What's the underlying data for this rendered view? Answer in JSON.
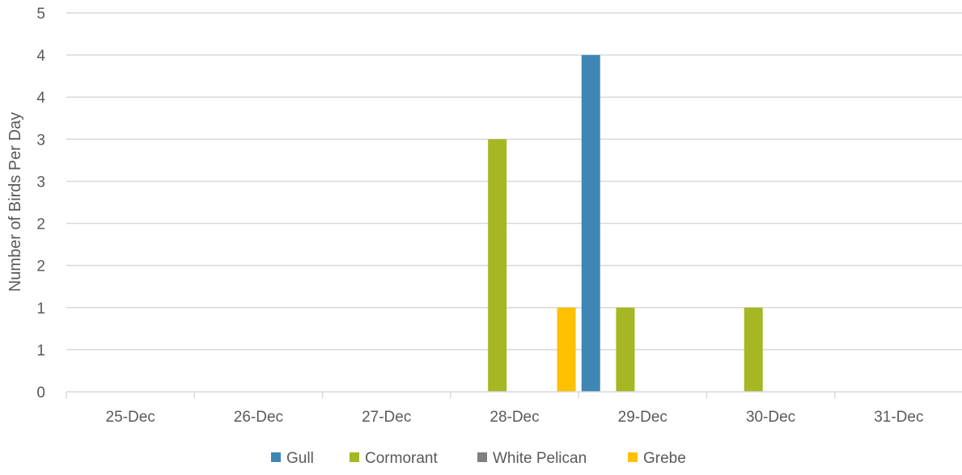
{
  "chart_data": {
    "type": "bar",
    "title": "",
    "xlabel": "",
    "ylabel": "Number of Birds Per Day",
    "categories": [
      "25-Dec",
      "26-Dec",
      "27-Dec",
      "28-Dec",
      "29-Dec",
      "30-Dec",
      "31-Dec"
    ],
    "y_tick_labels": [
      "0",
      "1",
      "1",
      "2",
      "2",
      "3",
      "3",
      "4",
      "4",
      "5"
    ],
    "y_tick_values": [
      0,
      0.5,
      1,
      1.5,
      2,
      2.5,
      3,
      3.5,
      4,
      4.5
    ],
    "ylim": [
      0,
      4.5
    ],
    "grid": true,
    "legend_position": "bottom",
    "series": [
      {
        "name": "Gull",
        "color": "#3E87B5",
        "values": [
          0,
          0,
          0,
          0,
          4,
          0,
          0
        ]
      },
      {
        "name": "Cormorant",
        "color": "#A5B823",
        "values": [
          0,
          0,
          0,
          3,
          1,
          1,
          0
        ]
      },
      {
        "name": "White Pelican",
        "color": "#808080",
        "values": [
          0,
          0,
          0,
          0,
          0,
          0,
          0
        ]
      },
      {
        "name": "Grebe",
        "color": "#FFC000",
        "values": [
          0,
          0,
          0,
          1,
          0,
          0,
          0
        ]
      }
    ]
  }
}
